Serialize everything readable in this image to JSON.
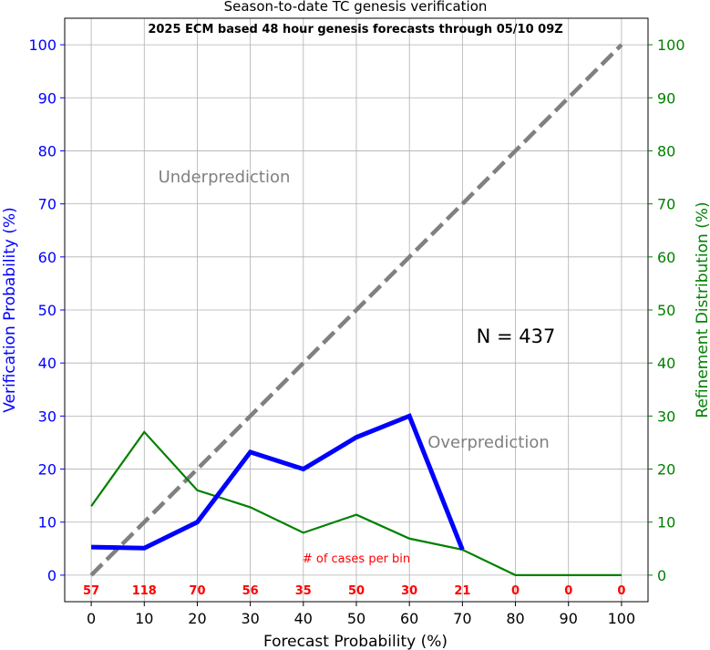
{
  "chart_data": {
    "type": "line",
    "title": "Season-to-date TC genesis verification",
    "subtitle": "2025 ECM based 48 hour genesis forecasts through 05/10 09Z",
    "xlabel": "Forecast Probability (%)",
    "ylabel_left": "Verification Probability (%)",
    "ylabel_right": "Refinement Distribution (%)",
    "xlim": [
      -5,
      105
    ],
    "ylim": [
      -5,
      105
    ],
    "x_ticks": [
      0,
      10,
      20,
      30,
      40,
      50,
      60,
      70,
      80,
      90,
      100
    ],
    "y_ticks": [
      0,
      10,
      20,
      30,
      40,
      50,
      60,
      70,
      80,
      90,
      100
    ],
    "grid": true,
    "series": [
      {
        "x": [
          0,
          10,
          20,
          30,
          40,
          50,
          60,
          70
        ],
        "values": [
          5.3,
          5.1,
          10.0,
          23.2,
          20.0,
          26.0,
          30.0,
          4.8
        ],
        "color": "#0000ff",
        "axis": "left"
      },
      {
        "x": [
          0,
          10,
          20,
          30,
          40,
          50,
          60,
          70,
          80,
          90,
          100
        ],
        "values": [
          13.0,
          27.0,
          16.0,
          12.8,
          8.0,
          11.4,
          6.9,
          4.8,
          0,
          0,
          0
        ],
        "color": "#008000",
        "axis": "right"
      },
      {
        "x": [
          0,
          100
        ],
        "values": [
          0,
          100
        ],
        "color": "#808080",
        "axis": "left",
        "style": "dashed"
      }
    ],
    "annotations": {
      "underprediction": "Underprediction",
      "overprediction": "Overprediction",
      "n_label": "N = 437",
      "cases_label": "# of cases per bin"
    },
    "case_counts": {
      "x": [
        0,
        10,
        20,
        30,
        40,
        50,
        60,
        70,
        80,
        90,
        100
      ],
      "values": [
        57,
        118,
        70,
        56,
        35,
        50,
        30,
        21,
        0,
        0,
        0
      ]
    },
    "colors": {
      "left_axis": "#0000ff",
      "right_axis": "#008000",
      "counts": "#ff0000",
      "annotation": "#808080"
    }
  }
}
